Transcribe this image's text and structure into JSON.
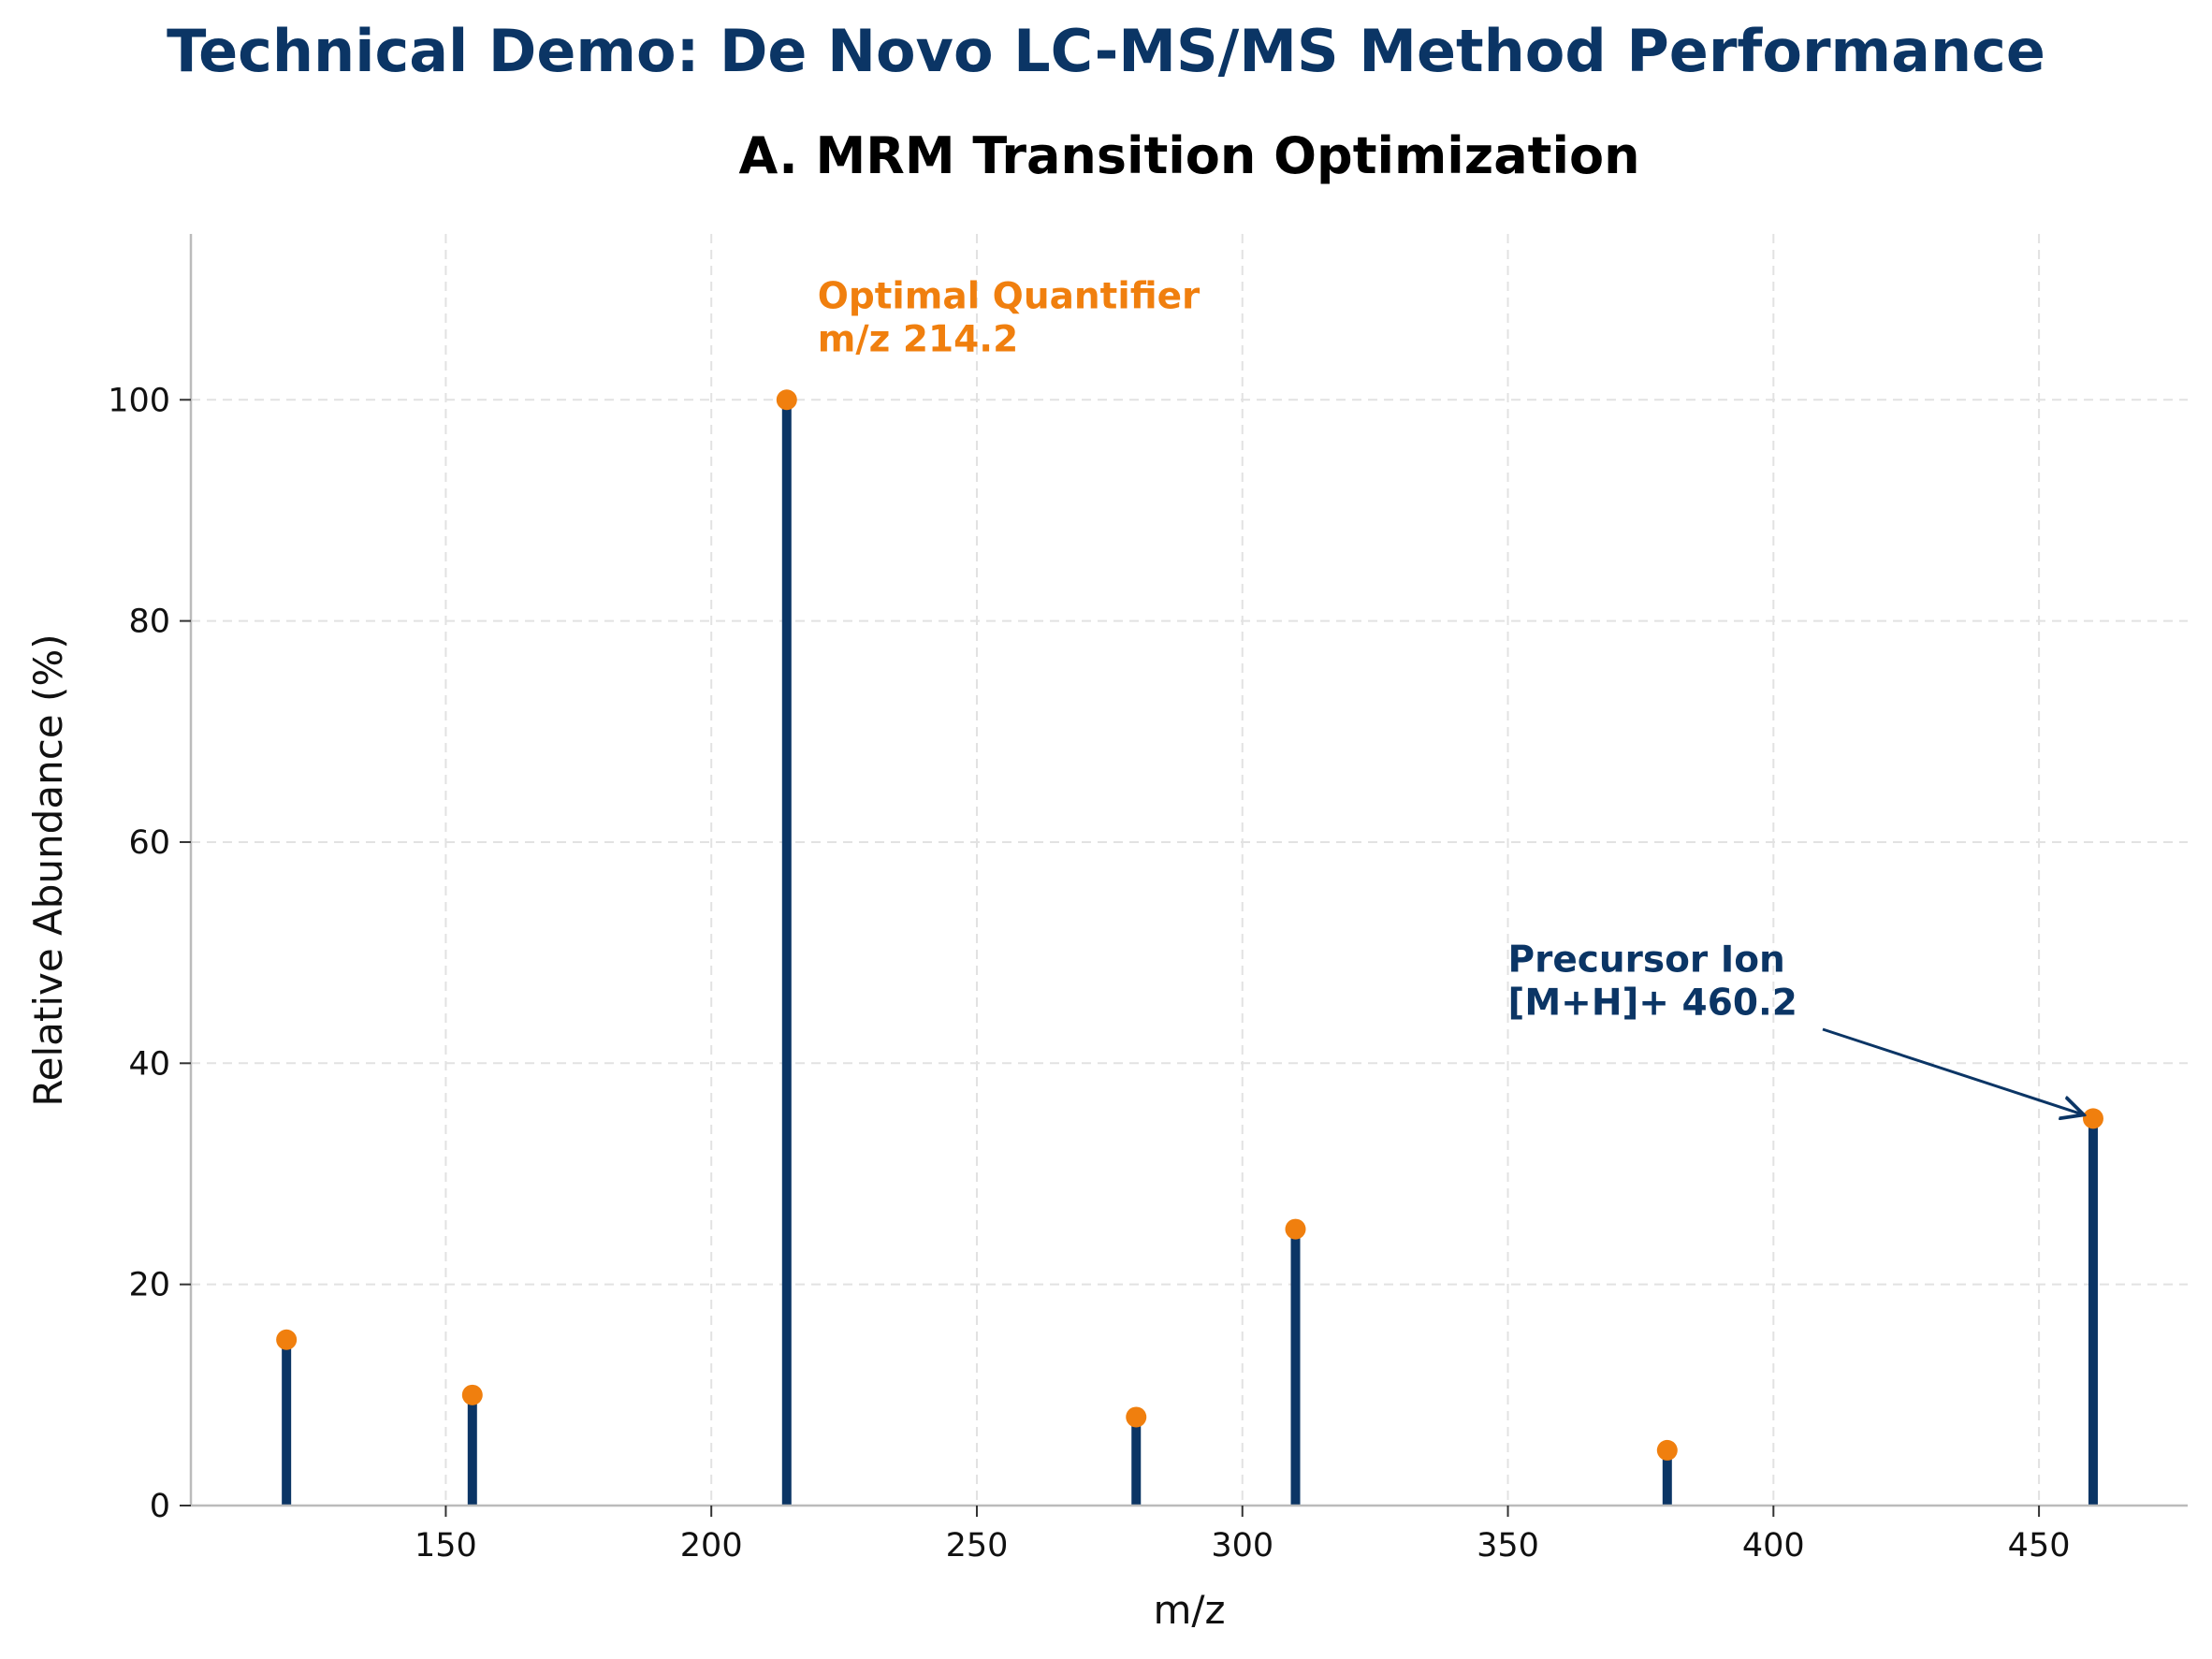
{
  "figure": {
    "suptitle": "Technical Demo: De Novo LC-MS/MS Method Performance"
  },
  "chart_data": {
    "type": "stem",
    "title": "A. MRM Transition Optimization",
    "xlabel": "m/z",
    "ylabel": "Relative Abundance (%)",
    "xlim": [
      102,
      478
    ],
    "ylim": [
      0,
      115
    ],
    "xticks": [
      150,
      200,
      250,
      300,
      350,
      400,
      450
    ],
    "yticks": [
      0,
      20,
      40,
      60,
      80,
      100
    ],
    "grid": true,
    "series": [
      {
        "x": [
          120,
          155,
          214.2,
          280,
          310,
          380,
          460.2
        ],
        "values": [
          15,
          10,
          100,
          8,
          25,
          5,
          35
        ]
      }
    ],
    "annotations": [
      {
        "id": "quantifier",
        "lines": [
          "Optimal Quantifier",
          "m/z 214.2"
        ],
        "x": 220,
        "y": 107.5,
        "color": "#f07f0e"
      },
      {
        "id": "precursor",
        "lines": [
          "Precursor Ion",
          "[M+H]+ 460.2"
        ],
        "x": 350,
        "y": 47.5,
        "color": "#0b3565",
        "arrow_to": [
          460.2,
          35
        ]
      }
    ],
    "colors": {
      "stem": "#0b3565",
      "marker": "#f07f0e",
      "grid": "#e2e2e2",
      "spine": "#bbbbbb"
    }
  }
}
